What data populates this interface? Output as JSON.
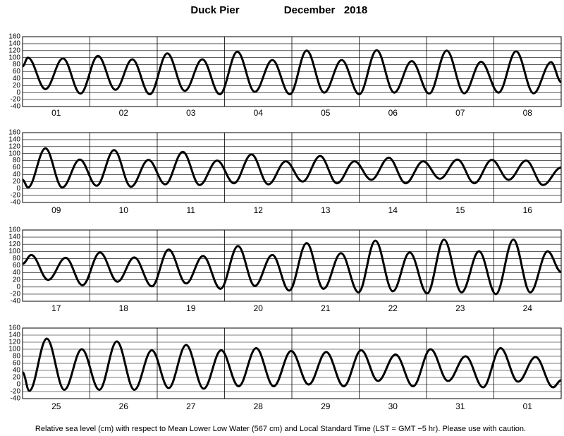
{
  "title": "Duck Pier",
  "period": "December   2018",
  "note": "Relative sea level (cm) with respect to Mean Lower Low Water (567 cm) and Local Standard Time (LST = GMT −5 hr). Please use with caution.",
  "chart_data": [
    {
      "type": "line",
      "categories": [
        "01",
        "02",
        "03",
        "04",
        "05",
        "06",
        "07",
        "08"
      ],
      "xlim": [
        0,
        8
      ],
      "ylim": [
        -40,
        160
      ],
      "yticks": [
        -40,
        -20,
        0,
        20,
        40,
        60,
        80,
        100,
        120,
        140,
        160
      ],
      "grid": true,
      "x": [
        0,
        0.08,
        0.34,
        0.6,
        0.86,
        1.12,
        1.38,
        1.63,
        1.89,
        2.15,
        2.41,
        2.67,
        2.93,
        3.19,
        3.45,
        3.71,
        3.97,
        4.22,
        4.48,
        4.74,
        5.0,
        5.26,
        5.52,
        5.78,
        6.04,
        6.3,
        6.56,
        6.81,
        7.07,
        7.33,
        7.59,
        7.85,
        8
      ],
      "series": [
        {
          "color": "#000000",
          "values": [
            75,
            100,
            10,
            98,
            -3,
            105,
            8,
            95,
            -5,
            112,
            5,
            95,
            -5,
            117,
            2,
            93,
            -5,
            120,
            0,
            93,
            -5,
            121,
            0,
            90,
            -3,
            120,
            -2,
            88,
            0,
            118,
            -2,
            87,
            30
          ]
        }
      ]
    },
    {
      "type": "line",
      "categories": [
        "09",
        "10",
        "11",
        "12",
        "13",
        "14",
        "15",
        "16"
      ],
      "xlim": [
        0,
        8
      ],
      "ylim": [
        -40,
        160
      ],
      "yticks": [
        -40,
        -20,
        0,
        20,
        40,
        60,
        80,
        100,
        120,
        140,
        160
      ],
      "grid": true,
      "x": [
        0,
        0.08,
        0.34,
        0.59,
        0.85,
        1.1,
        1.36,
        1.61,
        1.87,
        2.12,
        2.38,
        2.63,
        2.89,
        3.14,
        3.4,
        3.65,
        3.91,
        4.16,
        4.42,
        4.67,
        4.93,
        5.18,
        5.44,
        5.69,
        5.95,
        6.2,
        6.46,
        6.71,
        6.97,
        7.22,
        7.48,
        7.73,
        8
      ],
      "series": [
        {
          "color": "#000000",
          "values": [
            25,
            3,
            115,
            3,
            83,
            8,
            110,
            5,
            82,
            12,
            105,
            10,
            80,
            15,
            98,
            12,
            78,
            20,
            93,
            15,
            78,
            25,
            88,
            15,
            78,
            28,
            83,
            15,
            82,
            25,
            80,
            10,
            60
          ]
        }
      ]
    },
    {
      "type": "line",
      "categories": [
        "17",
        "18",
        "19",
        "20",
        "21",
        "22",
        "23",
        "24"
      ],
      "xlim": [
        0,
        8
      ],
      "ylim": [
        -40,
        160
      ],
      "yticks": [
        -40,
        -20,
        0,
        20,
        40,
        60,
        80,
        100,
        120,
        140,
        160
      ],
      "grid": true,
      "x": [
        0,
        0.13,
        0.38,
        0.64,
        0.89,
        1.15,
        1.41,
        1.66,
        1.92,
        2.17,
        2.43,
        2.68,
        2.94,
        3.2,
        3.45,
        3.71,
        3.96,
        4.22,
        4.47,
        4.73,
        4.99,
        5.24,
        5.5,
        5.75,
        6.01,
        6.26,
        6.52,
        6.78,
        7.03,
        7.29,
        7.54,
        7.8,
        8
      ],
      "series": [
        {
          "color": "#000000",
          "values": [
            65,
            90,
            20,
            82,
            5,
            97,
            15,
            83,
            2,
            105,
            10,
            87,
            -5,
            115,
            3,
            90,
            -10,
            123,
            -5,
            95,
            -15,
            130,
            -12,
            97,
            -18,
            133,
            -15,
            100,
            -20,
            133,
            -15,
            100,
            42
          ]
        }
      ]
    },
    {
      "type": "line",
      "categories": [
        "25",
        "26",
        "27",
        "28",
        "29",
        "30",
        "31",
        "01"
      ],
      "xlim": [
        0,
        8
      ],
      "ylim": [
        -40,
        160
      ],
      "yticks": [
        -40,
        -20,
        0,
        20,
        40,
        60,
        80,
        100,
        120,
        140,
        160
      ],
      "grid": true,
      "x": [
        0,
        0.1,
        0.36,
        0.62,
        0.88,
        1.14,
        1.4,
        1.66,
        1.92,
        2.17,
        2.43,
        2.69,
        2.95,
        3.21,
        3.47,
        3.73,
        3.99,
        4.25,
        4.51,
        4.77,
        5.03,
        5.28,
        5.54,
        5.8,
        6.06,
        6.32,
        6.58,
        6.84,
        7.1,
        7.36,
        7.62,
        7.88,
        8
      ],
      "series": [
        {
          "color": "#000000",
          "values": [
            35,
            -18,
            130,
            -15,
            100,
            -15,
            122,
            -15,
            97,
            -10,
            112,
            -12,
            97,
            -5,
            103,
            -5,
            95,
            0,
            92,
            -5,
            97,
            10,
            85,
            -5,
            100,
            10,
            80,
            -8,
            103,
            8,
            78,
            -8,
            12
          ]
        }
      ]
    }
  ]
}
